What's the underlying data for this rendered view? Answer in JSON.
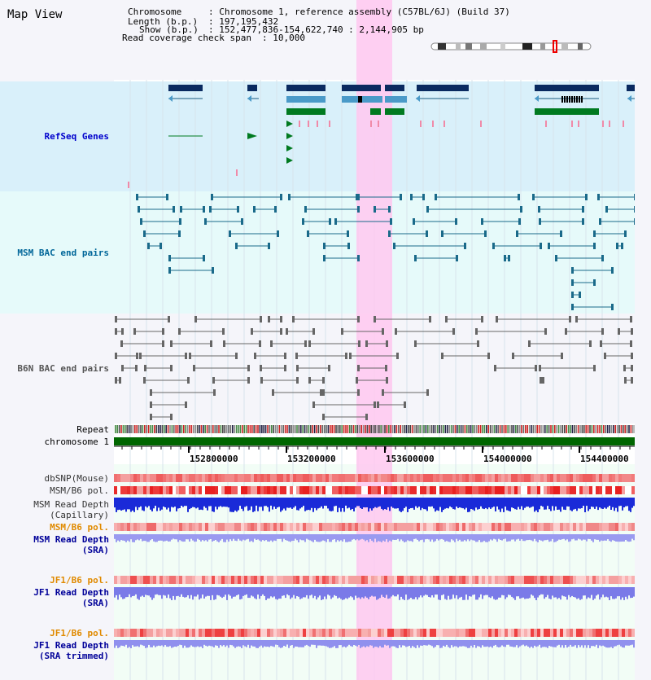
{
  "title": "Map View",
  "info": {
    "chromosome_key": "Chromosome",
    "chromosome_val": ": Chromosome 1, reference assembly (C57BL/6J) (Build 37)",
    "length_key": "Length (b.p.)",
    "length_val": ": 197,195,432",
    "show_key": "Show (b.p.)",
    "show_val": ": 152,477,836-154,622,740 : 2,144,905 bp",
    "read_key": "Read coverage check span",
    "read_val": ": 10,000"
  },
  "tracks": {
    "refseq": "RefSeq Genes",
    "msm_bac": "MSM BAC end pairs",
    "b6n_bac": "B6N BAC end pairs",
    "repeat": "Repeat",
    "chromosome": "chromosome 1",
    "dbsnp": "dbSNP(Mouse)",
    "msm_b6_pol_1": "MSM/B6 pol.",
    "msm_depth_cap_1": "MSM Read Depth",
    "msm_depth_cap_2": "(Capillary)",
    "msm_b6_pol_2": "MSM/B6 pol.",
    "msm_depth_sra_1": "MSM Read Depth",
    "msm_depth_sra_2": "(SRA)",
    "jf1_b6_pol_1": "JF1/B6 pol.",
    "jf1_depth_sra_1": "JF1 Read Depth",
    "jf1_depth_sra_2": "(SRA)",
    "jf1_b6_pol_2": "JF1/B6 pol.",
    "jf1_depth_trim_1": "JF1 Read Depth",
    "jf1_depth_trim_2": "(SRA trimmed)"
  },
  "ruler": {
    "ticks": [
      "152800000",
      "153200000",
      "153600000",
      "154000000",
      "154400000"
    ]
  },
  "colors": {
    "refseq_label": "#0000cc",
    "msm_label": "#006699",
    "b6n_label": "#555555",
    "orange_label": "#e08a00",
    "blue_label": "#000099",
    "highlight": "#ffc8f0",
    "chromosome_bar": "#006600"
  }
}
